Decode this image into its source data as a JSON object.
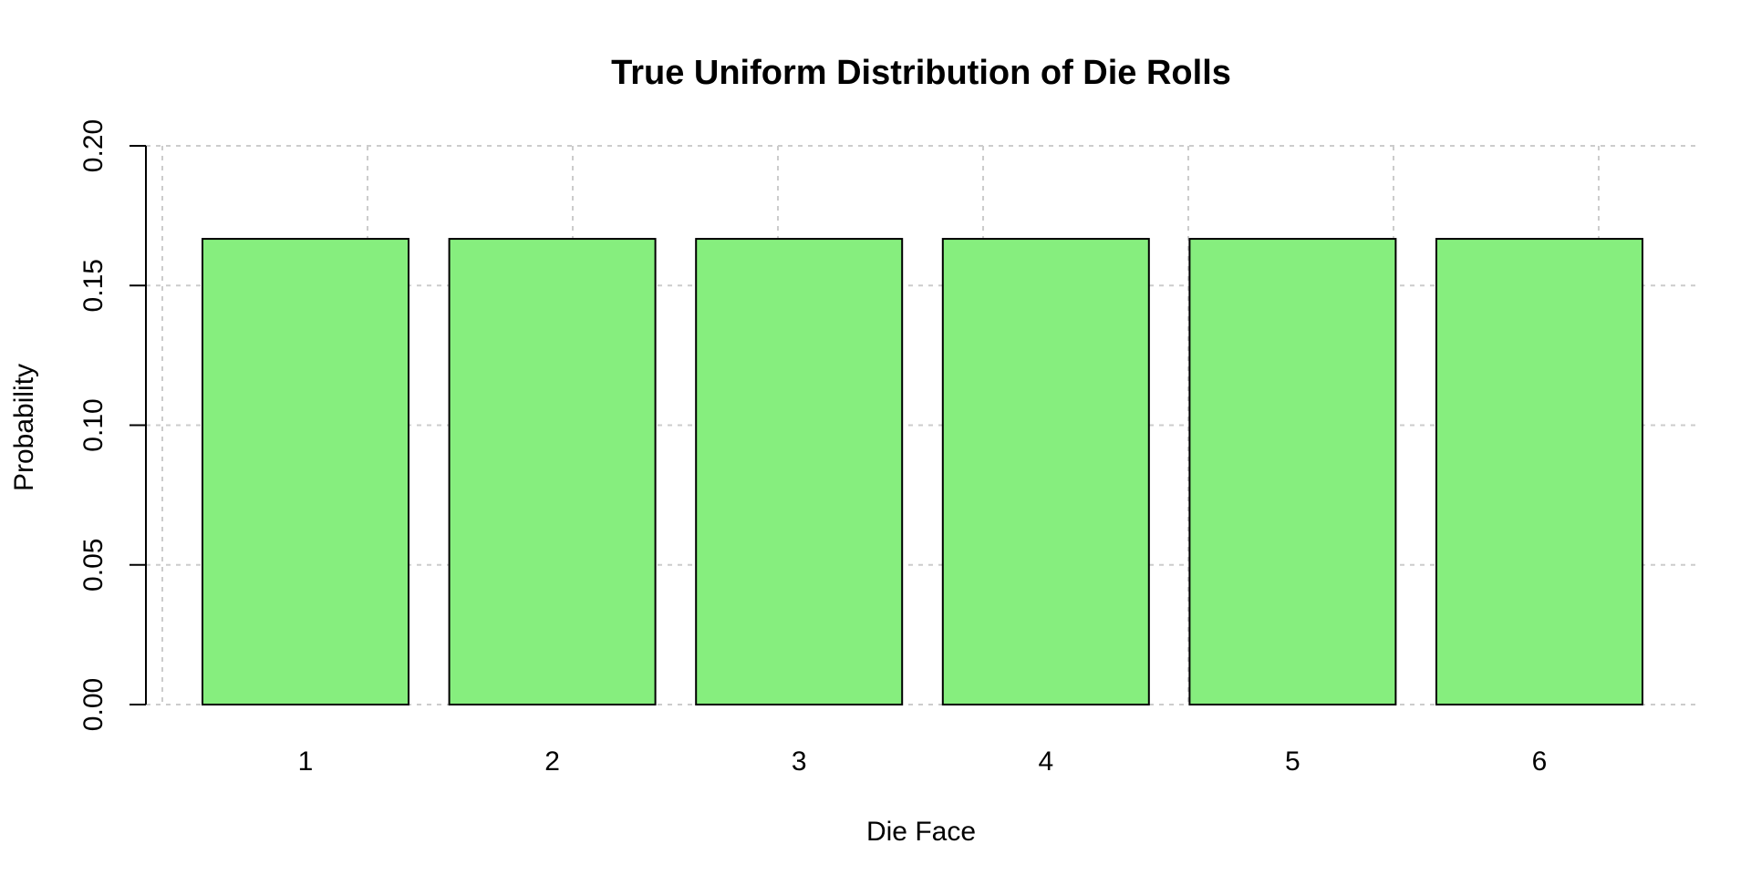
{
  "chart_data": {
    "type": "bar",
    "title": "True Uniform Distribution of Die Rolls",
    "xlabel": "Die Face",
    "ylabel": "Probability",
    "categories": [
      "1",
      "2",
      "3",
      "4",
      "5",
      "6"
    ],
    "values": [
      0.1667,
      0.1667,
      0.1667,
      0.1667,
      0.1667,
      0.1667
    ],
    "ylim": [
      0,
      0.2
    ],
    "yticks": [
      "0.00",
      "0.05",
      "0.10",
      "0.15",
      "0.20"
    ],
    "bar_color": "#86ee7e",
    "grid": true,
    "legend": "none"
  }
}
